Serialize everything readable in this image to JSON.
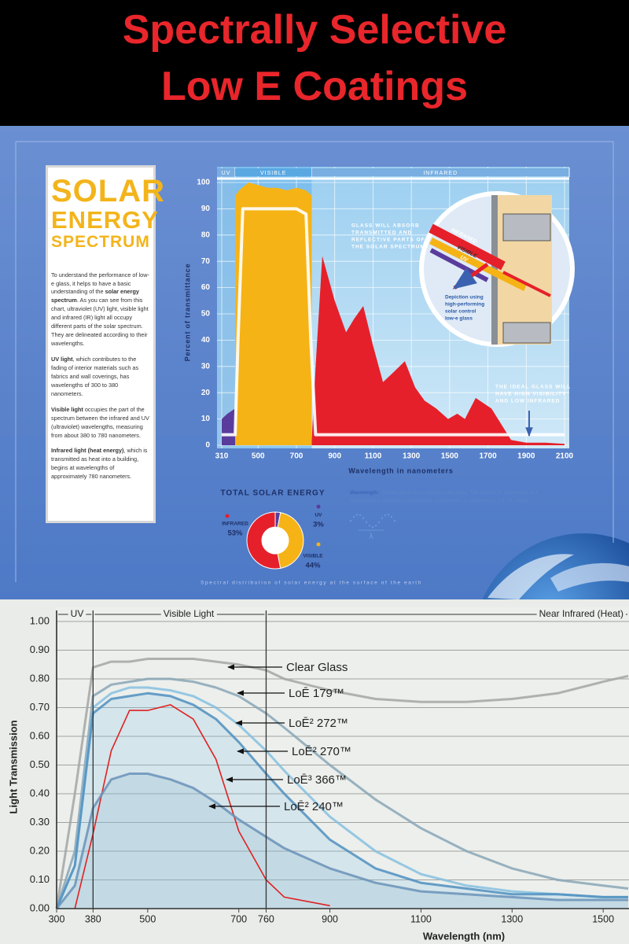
{
  "header": {
    "title_lines": [
      "Spectrally Selective",
      "Low E Coatings"
    ]
  },
  "sidebar": {
    "title_lines": [
      "SOLAR",
      "ENERGY",
      "SPECTRUM"
    ],
    "paragraphs": [
      [
        "To understand the performance of low-e glass, it helps to have a basic understanding of the ",
        {
          "bold": "solar energy spectrum"
        },
        ". As you can see from this chart, ultraviolet (UV) light, visible light and infrared (IR) light all occupy different parts of the solar spectrum. They are delineated according to their wavelengths."
      ],
      [
        {
          "bold": "UV light"
        },
        ", which contributes to the fading of interior materials such as fabrics and wall coverings, has wavelengths of 300 to 380 nanometers."
      ],
      [
        {
          "bold": "Visible light"
        },
        " occupies the part of the spectrum between the infrared and UV (ultraviolet) wavelengths, measuring from about 380 to 780 nanometers."
      ],
      [
        {
          "bold": "Infrared light (heat energy)"
        },
        ", which is transmitted as heat into a building, begins at wavelengths of approximately 780 nanometers."
      ]
    ]
  },
  "notes": {
    "wavelength": {
      "label": "Wavelength:",
      "lines": [
        "The length of one complete wave cycle. The symbol for wavelength is λ",
        "Wavelength is commonly measured in nanometers. 1 nanometer = 1x10-9 meters."
      ],
      "symbol": "λ"
    },
    "caption": "Spectral distribution of solar energy at the surface of the earth"
  },
  "chart_data": [
    {
      "type": "area",
      "x_label": "Wavelength in nanometers",
      "y_label": "Percent of transmittance",
      "xlim": [
        310,
        2100
      ],
      "ylim": [
        0,
        100
      ],
      "xticks": [
        310,
        500,
        700,
        900,
        1100,
        1300,
        1500,
        1700,
        1900,
        2100
      ],
      "yticks": [
        0,
        10,
        20,
        30,
        40,
        50,
        60,
        70,
        80,
        90,
        100
      ],
      "grid": true,
      "series": [
        {
          "name": "UV",
          "color": "#5a3c9c",
          "range": [
            310,
            380
          ],
          "x": [
            310,
            340,
            380
          ],
          "values": [
            10,
            12,
            14
          ]
        },
        {
          "name": "VISIBLE",
          "color": "#f6b316",
          "range": [
            380,
            780
          ],
          "x": [
            380,
            400,
            450,
            500,
            550,
            600,
            650,
            700,
            750,
            780
          ],
          "values": [
            95,
            97,
            100,
            99,
            98,
            98,
            97,
            98,
            97,
            95
          ]
        },
        {
          "name": "INFRARED",
          "color": "#e5202a",
          "range": [
            780,
            2100
          ],
          "x": [
            780,
            800,
            835,
            900,
            959,
            1000,
            1049,
            1100,
            1152,
            1210,
            1266,
            1320,
            1369,
            1430,
            1492,
            1540,
            1580,
            1636,
            1718,
            1821,
            1900,
            2000,
            2100
          ],
          "values": [
            2,
            30,
            72,
            55,
            43,
            48,
            53,
            38,
            24,
            28,
            32,
            22,
            17,
            14,
            10,
            12,
            10,
            18,
            14,
            2,
            1,
            1,
            0.5
          ]
        }
      ],
      "ideal": {
        "color": "#ffffff",
        "x": [
          310,
          380,
          395,
          420,
          700,
          750,
          775,
          800,
          2100
        ],
        "values": [
          4,
          4,
          40,
          90,
          90,
          88,
          40,
          4,
          4
        ]
      },
      "annotations": [
        [
          "GLASS WILL ABSORB",
          "TRANSMITTED AND",
          "REFLECTIVE PARTS OF",
          "THE SOLAR SPECTRUM"
        ],
        [
          "Depiction using",
          "high-performing",
          "solar control",
          "low-e glass"
        ],
        [
          "THE IDEAL GLASS WILL",
          "HAVE HIGH VISIBILITY",
          "AND LOW INFRARED"
        ]
      ],
      "inset_labels": [
        "INFRARED",
        "VISIBLE",
        "UV"
      ]
    },
    {
      "type": "pie",
      "title": "TOTAL SOLAR ENERGY",
      "categories": [
        "INFRARED",
        "UV",
        "VISIBLE"
      ],
      "values": [
        53,
        3,
        44
      ],
      "value_labels": [
        "53%",
        "3%",
        "44%"
      ],
      "colors": [
        "#e5202a",
        "#5a3c9c",
        "#f6b316"
      ]
    },
    {
      "type": "line",
      "x_label": "Wavelength (nm)",
      "y_label": "Light Transmission",
      "xlim": [
        300,
        1555
      ],
      "ylim": [
        0,
        1
      ],
      "xticks": [
        300,
        380,
        500,
        700,
        760,
        900,
        1100,
        1300,
        1500
      ],
      "yticks": [
        {
          "value": 0,
          "label": "0.00"
        },
        {
          "value": 0.1,
          "label": "0.10"
        },
        {
          "value": 0.2,
          "label": "0.20"
        },
        {
          "value": 0.3,
          "label": "0.30"
        },
        {
          "value": 0.4,
          "label": "0.40"
        },
        {
          "value": 0.5,
          "label": "0.50"
        },
        {
          "value": 0.6,
          "label": "0.60"
        },
        {
          "value": 0.7,
          "label": "0.70"
        },
        {
          "value": 0.8,
          "label": "0.80"
        },
        {
          "value": 0.9,
          "label": "0.90"
        },
        {
          "value": 1,
          "label": "1.00"
        }
      ],
      "grid": true,
      "regions": [
        {
          "name": "UV",
          "range": [
            300,
            380
          ]
        },
        {
          "name": "Visible Light",
          "range": [
            380,
            760
          ]
        },
        {
          "name": "Near Infrared (Heat)",
          "range": [
            760,
            null
          ]
        }
      ],
      "x": [
        300,
        340,
        380,
        420,
        460,
        500,
        550,
        600,
        650,
        700,
        760,
        800,
        900,
        1000,
        1100,
        1200,
        1300,
        1400,
        1500,
        1555
      ],
      "series": [
        {
          "name": "Clear Glass",
          "color": "#a3a6a4",
          "values": [
            0,
            0.4,
            0.84,
            0.86,
            0.86,
            0.87,
            0.87,
            0.87,
            0.86,
            0.85,
            0.83,
            0.8,
            0.76,
            0.73,
            0.72,
            0.72,
            0.73,
            0.75,
            0.79,
            0.81
          ]
        },
        {
          "name": "LoĒ 179™",
          "color": "#8aa6b6",
          "values": [
            0,
            0.2,
            0.74,
            0.78,
            0.79,
            0.8,
            0.8,
            0.79,
            0.77,
            0.74,
            0.68,
            0.63,
            0.5,
            0.38,
            0.28,
            0.2,
            0.14,
            0.1,
            0.08,
            0.07
          ]
        },
        {
          "name": "LoĒ² 272™",
          "color": "#86bfe0",
          "values": [
            0,
            0.15,
            0.7,
            0.75,
            0.77,
            0.77,
            0.76,
            0.74,
            0.7,
            0.64,
            0.55,
            0.48,
            0.32,
            0.2,
            0.12,
            0.08,
            0.06,
            0.05,
            0.04,
            0.04
          ]
        },
        {
          "name": "LoĒ² 270™",
          "color": "#4f8fc0",
          "values": [
            0,
            0.15,
            0.68,
            0.73,
            0.74,
            0.75,
            0.74,
            0.71,
            0.66,
            0.58,
            0.47,
            0.4,
            0.24,
            0.14,
            0.09,
            0.07,
            0.05,
            0.05,
            0.04,
            0.04
          ]
        },
        {
          "name": "LoĒ³ 366™",
          "color": "#e02020",
          "values": [
            null,
            0,
            0.26,
            0.55,
            0.69,
            0.69,
            0.71,
            0.66,
            0.52,
            0.27,
            0.1,
            0.04,
            0.01,
            null,
            null,
            null,
            null,
            null,
            null,
            null
          ]
        },
        {
          "name": "LoĒ² 240™",
          "color": "#6a92b8",
          "values": [
            0,
            0.08,
            0.35,
            0.45,
            0.47,
            0.47,
            0.45,
            0.42,
            0.37,
            0.31,
            0.25,
            0.21,
            0.14,
            0.09,
            0.06,
            0.05,
            0.04,
            0.03,
            0.03,
            0.03
          ]
        }
      ]
    }
  ]
}
